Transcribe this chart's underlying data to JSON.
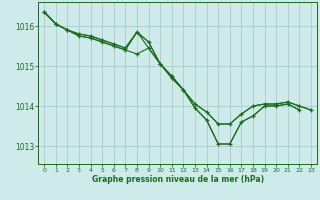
{
  "background_color": "#ceeaea",
  "grid_color": "#aacccc",
  "line_color": "#1a6b1a",
  "xlabel": "Graphe pression niveau de la mer (hPa)",
  "ylim": [
    1012.55,
    1016.6
  ],
  "xlim": [
    -0.5,
    23.5
  ],
  "yticks": [
    1013,
    1014,
    1015,
    1016
  ],
  "xticks": [
    0,
    1,
    2,
    3,
    4,
    5,
    6,
    7,
    8,
    9,
    10,
    11,
    12,
    13,
    14,
    15,
    16,
    17,
    18,
    19,
    20,
    21,
    22,
    23
  ],
  "series": [
    {
      "x": [
        0,
        1,
        2,
        3,
        4,
        5,
        6,
        7,
        8,
        9,
        10,
        11,
        12,
        13,
        14,
        15,
        16,
        17,
        18,
        19,
        20,
        21,
        22
      ],
      "y": [
        1016.35,
        1016.05,
        1015.9,
        1015.8,
        1015.75,
        1015.65,
        1015.55,
        1015.45,
        1015.85,
        1015.6,
        1015.05,
        1014.75,
        1014.4,
        1013.95,
        1013.65,
        1013.05,
        1013.05,
        1013.6,
        1013.75,
        1014.0,
        1014.0,
        1014.05,
        1013.9
      ],
      "markers": true
    },
    {
      "x": [
        0,
        1,
        2,
        3,
        4,
        5,
        6,
        7,
        8,
        9,
        10,
        11,
        12,
        13,
        14,
        15,
        16,
        17,
        18,
        19,
        20,
        21,
        22
      ],
      "y": [
        1016.35,
        1016.05,
        1015.9,
        1015.8,
        1015.75,
        1015.65,
        1015.55,
        1015.45,
        1015.85,
        1015.6,
        1015.05,
        1014.75,
        1014.4,
        1013.95,
        1013.65,
        1013.05,
        1013.05,
        1013.6,
        1013.75,
        1014.0,
        1014.0,
        1014.05,
        1013.9
      ],
      "markers": false
    },
    {
      "x": [
        0,
        1,
        2,
        3,
        4,
        5,
        6,
        7,
        8,
        9,
        10,
        11,
        12,
        13,
        14,
        15,
        16,
        17,
        18,
        19,
        20,
        21,
        22,
        23
      ],
      "y": [
        1016.35,
        1016.05,
        1015.9,
        1015.75,
        1015.7,
        1015.6,
        1015.5,
        1015.4,
        1015.3,
        1015.45,
        1015.05,
        1014.7,
        1014.4,
        1014.05,
        1013.85,
        1013.55,
        1013.55,
        1013.8,
        1014.0,
        1014.05,
        1014.05,
        1014.1,
        1014.0,
        1013.9
      ],
      "markers": true
    },
    {
      "x": [
        0,
        1,
        2,
        3,
        4,
        5,
        6,
        7,
        8,
        9,
        10,
        11,
        12,
        13,
        14,
        15,
        16,
        17,
        18,
        19,
        20,
        21,
        22,
        23
      ],
      "y": [
        1016.35,
        1016.05,
        1015.9,
        1015.75,
        1015.7,
        1015.6,
        1015.5,
        1015.4,
        1015.85,
        1015.45,
        1015.05,
        1014.7,
        1014.4,
        1014.05,
        1013.85,
        1013.55,
        1013.55,
        1013.8,
        1014.0,
        1014.05,
        1014.05,
        1014.1,
        1014.0,
        1013.9
      ],
      "markers": false
    }
  ]
}
